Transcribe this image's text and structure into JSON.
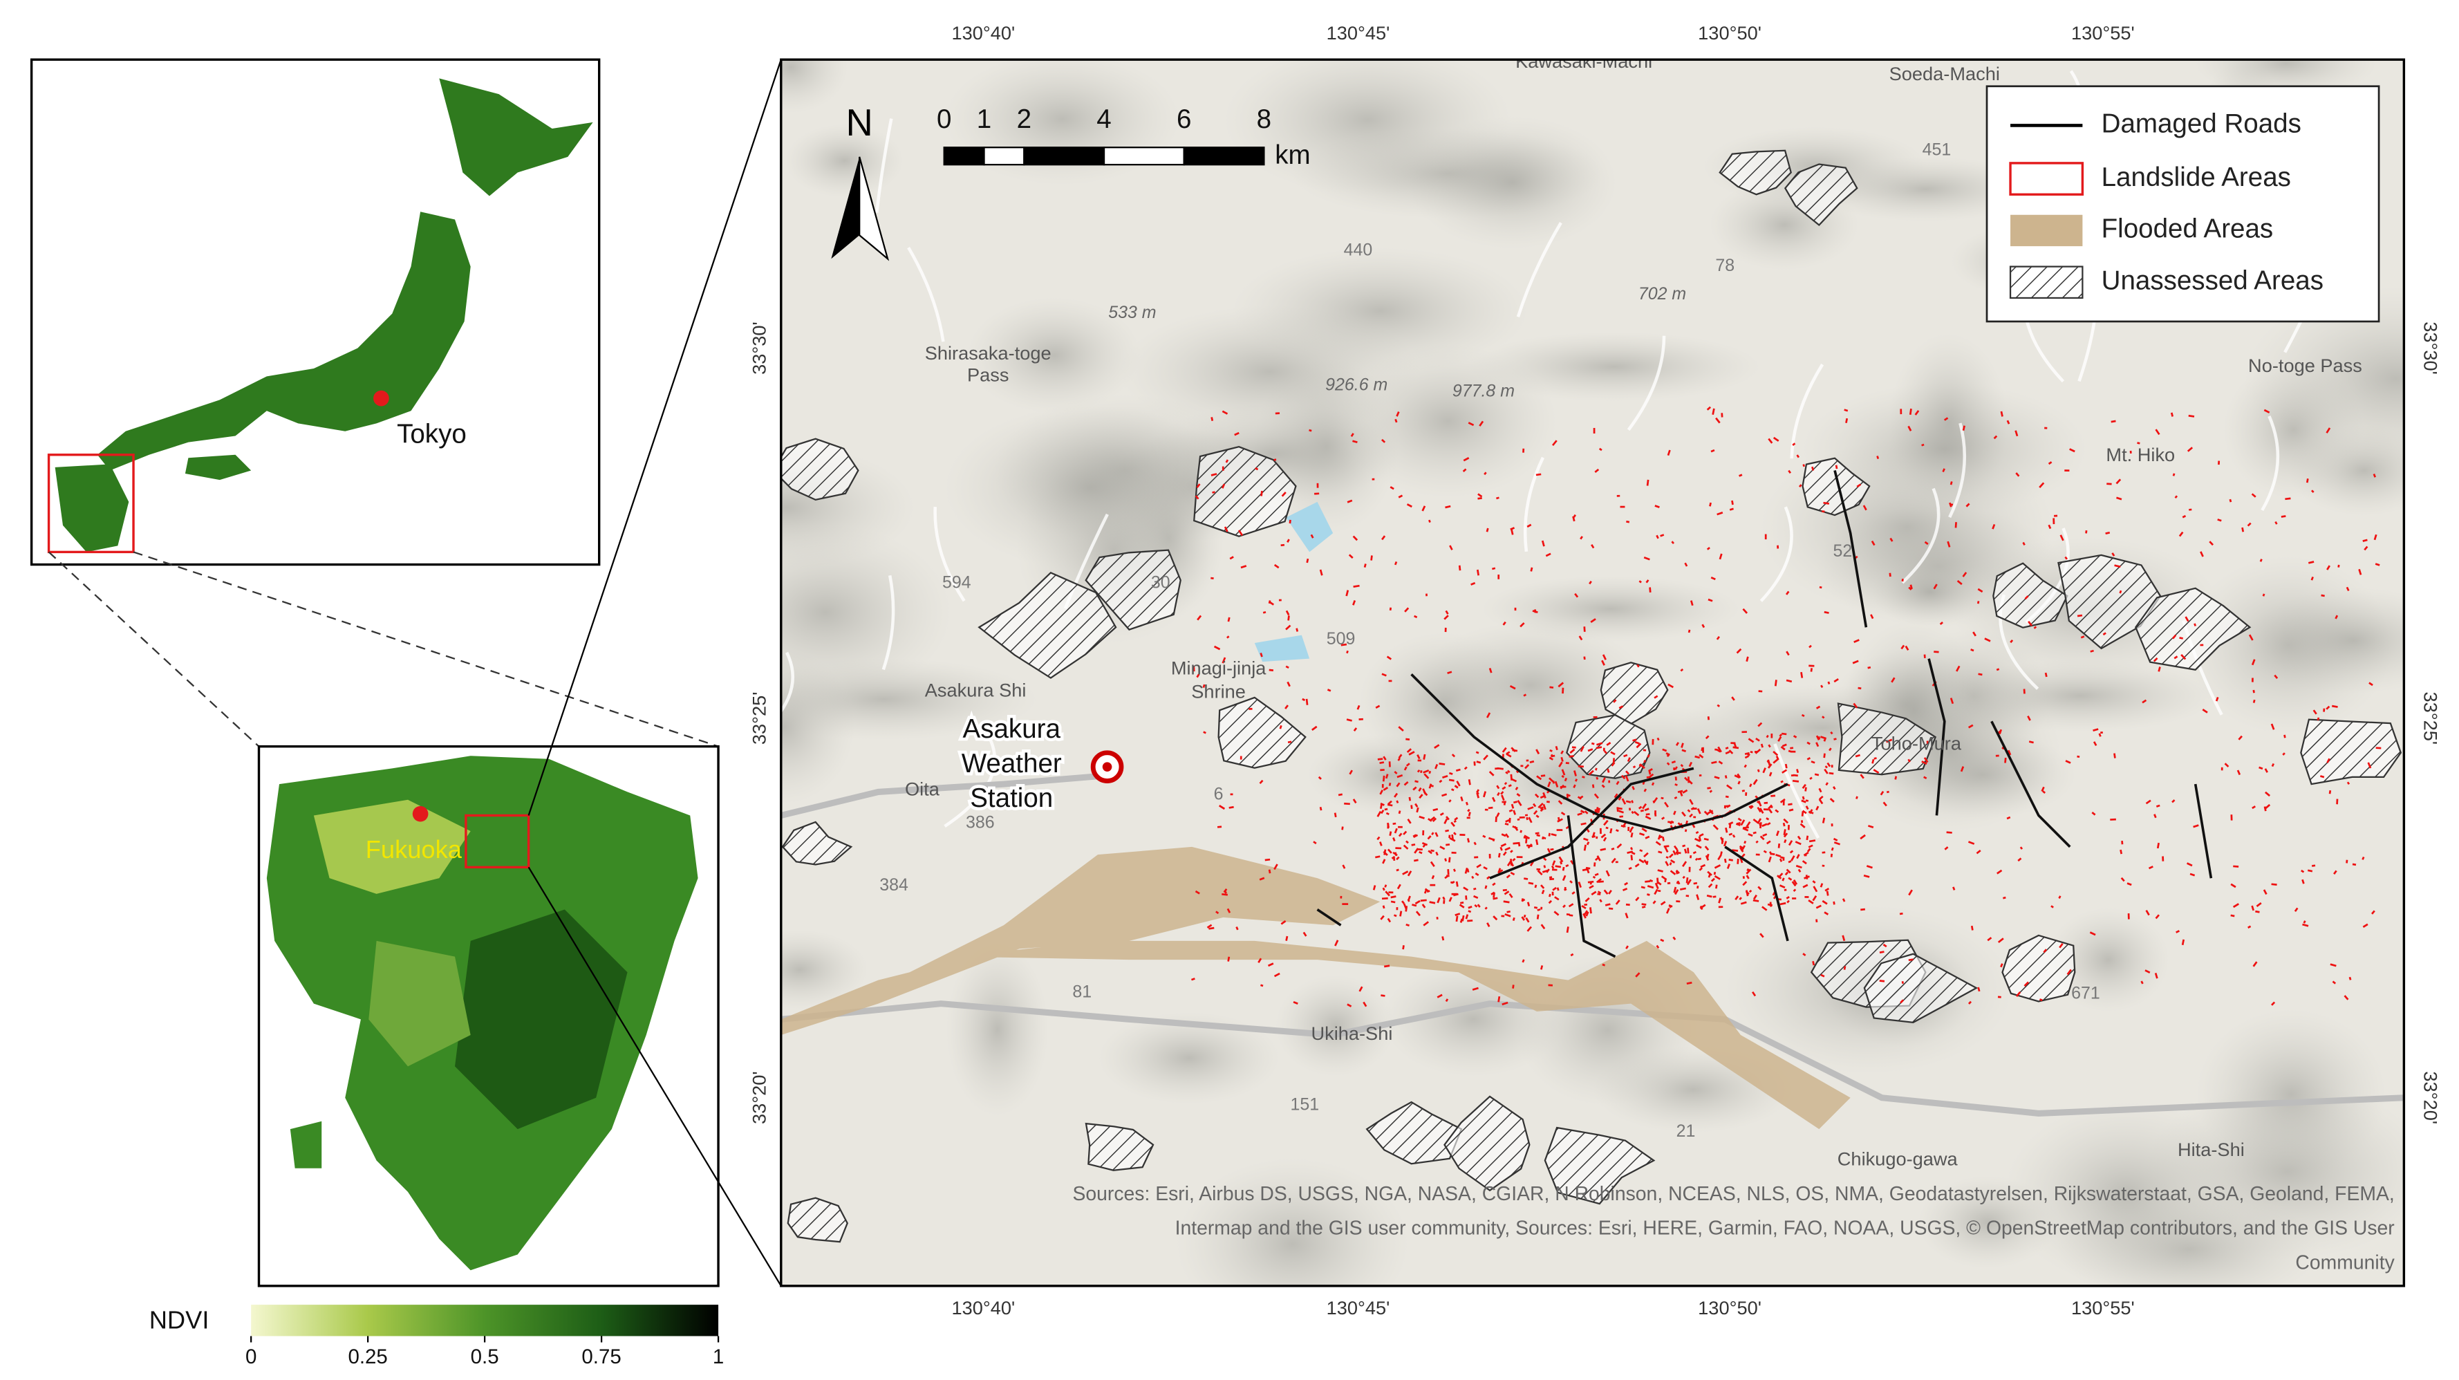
{
  "japan_inset": {
    "label": "Tokyo"
  },
  "kyushu_inset": {
    "label": "Fukuoka"
  },
  "colorbar": {
    "label": "NDVI",
    "lim": [
      0,
      1
    ],
    "ticks": [
      0,
      0.25,
      0.5,
      0.75,
      1
    ]
  },
  "main_map": {
    "lon_labels": [
      "130°40'",
      "130°45'",
      "130°50'",
      "130°55'"
    ],
    "lat_labels": [
      "33°30'",
      "33°25'",
      "33°20'"
    ],
    "north": "N",
    "scale": {
      "ticks": [
        0,
        1,
        2,
        4,
        6,
        8
      ],
      "unit": "km"
    },
    "legend": [
      "Damaged Roads",
      "Landslide Areas",
      "Flooded Areas",
      "Unassessed Areas"
    ],
    "station": [
      "Asakura",
      "Weather",
      "Station"
    ],
    "places": [
      "Kawasaki-Machi",
      "Soeda-Machi",
      "Shirasaka-toge",
      "Pass",
      "No-toge Pass",
      "Mt. Hiko",
      "Asakura Shi",
      "Minagi-jinja",
      "Shrine",
      "Toho-Mura",
      "Oita",
      "Ukiha-Shi",
      "Hita-Shi",
      "Chikugo-gawa"
    ],
    "elevations": [
      "533 m",
      "926.6 m",
      "977.8 m",
      "702 m"
    ],
    "roads": [
      "594",
      "509",
      "30",
      "52",
      "81",
      "151",
      "21",
      "671",
      "384",
      "451",
      "440",
      "78",
      "6",
      "386"
    ],
    "sources": [
      "Sources: Esri, Airbus DS, USGS, NGA, NASA, CGIAR, N Robinson, NCEAS, NLS, OS, NMA, Geodatastyrelsen, Rijkswaterstaat, GSA, Geoland, FEMA,",
      "Intermap and the GIS user community, Sources: Esri, HERE, Garmin, FAO, NOAA, USGS, © OpenStreetMap contributors, and the GIS User",
      "Community"
    ]
  }
}
